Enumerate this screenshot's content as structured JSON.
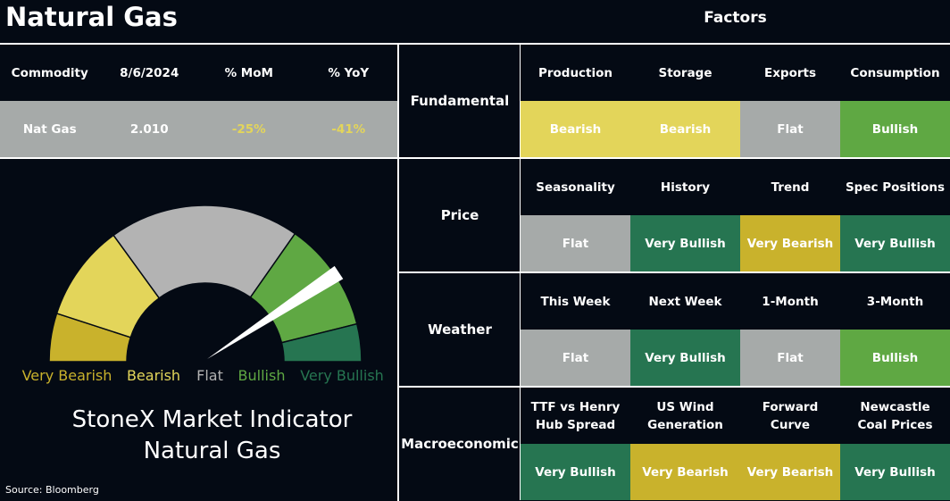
{
  "header": {
    "title": "Natural Gas",
    "factors_title": "Factors"
  },
  "commodity_table": {
    "headers": [
      "Commodity",
      "8/6/2024",
      "% MoM",
      "% YoY"
    ],
    "row": [
      "Nat Gas",
      "2.010",
      "-25%",
      "-41%"
    ],
    "row_colors": [
      "#ffffff",
      "#ffffff",
      "#e3d55a",
      "#e3d55a"
    ]
  },
  "gauge": {
    "labels": [
      "Very Bearish",
      "Bearish",
      "Flat",
      "Bullish",
      "Very Bullish"
    ],
    "colors": [
      "#c9b22c",
      "#e3d55a",
      "#b3b3b3",
      "#5fa843",
      "#267551"
    ]
  },
  "indicator": {
    "line1": "StoneX Market Indicator",
    "line2": "Natural Gas"
  },
  "source": "Source: Bloomberg",
  "factors": [
    {
      "name": "Fundamental",
      "items": [
        {
          "factor": "Production",
          "signal": "Bearish",
          "color": "#e3d55a"
        },
        {
          "factor": "Storage",
          "signal": "Bearish",
          "color": "#e3d55a"
        },
        {
          "factor": "Exports",
          "signal": "Flat",
          "color": "#a6aaa9"
        },
        {
          "factor": "Consumption",
          "signal": "Bullish",
          "color": "#5fa843"
        }
      ]
    },
    {
      "name": "Price",
      "items": [
        {
          "factor": "Seasonality",
          "signal": "Flat",
          "color": "#a6aaa9"
        },
        {
          "factor": "History",
          "signal": "Very Bullish",
          "color": "#267551"
        },
        {
          "factor": "Trend",
          "signal": "Very Bearish",
          "color": "#c9b22c"
        },
        {
          "factor": "Spec Positions",
          "signal": "Very Bullish",
          "color": "#267551"
        }
      ]
    },
    {
      "name": "Weather",
      "items": [
        {
          "factor": "This Week",
          "signal": "Flat",
          "color": "#a6aaa9"
        },
        {
          "factor": "Next Week",
          "signal": "Very Bullish",
          "color": "#267551"
        },
        {
          "factor": "1-Month",
          "signal": "Flat",
          "color": "#a6aaa9"
        },
        {
          "factor": "3-Month",
          "signal": "Bullish",
          "color": "#5fa843"
        }
      ]
    },
    {
      "name": "Macroeconomic",
      "items": [
        {
          "factor": "TTF vs Henry Hub Spread",
          "signal": "Very Bullish",
          "color": "#267551"
        },
        {
          "factor": "US Wind Generation",
          "signal": "Very Bearish",
          "color": "#c9b22c"
        },
        {
          "factor": "Forward Curve",
          "signal": "Very Bearish",
          "color": "#c9b22c"
        },
        {
          "factor": "Newcastle Coal Prices",
          "signal": "Very Bullish",
          "color": "#267551"
        }
      ]
    }
  ]
}
